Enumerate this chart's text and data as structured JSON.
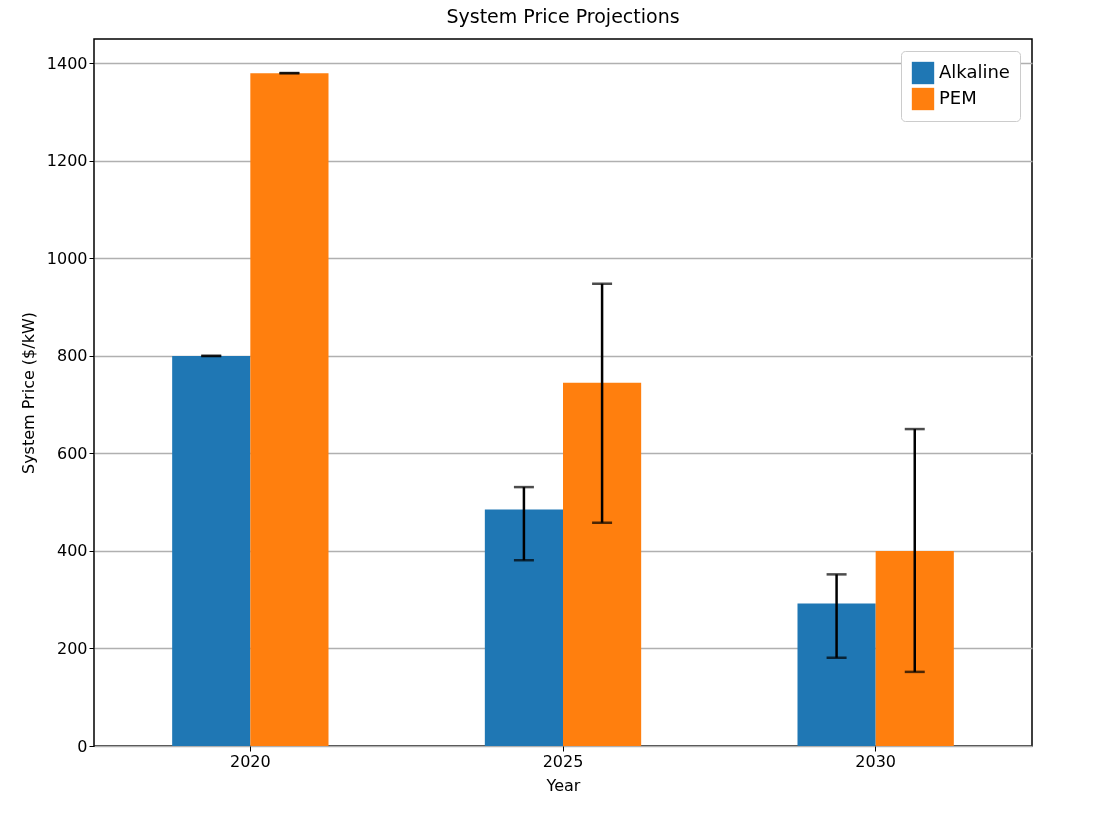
{
  "chart_data": {
    "type": "bar",
    "title": "System Price Projections",
    "xlabel": "Year",
    "ylabel": "System Price ($/kW)",
    "categories": [
      "2020",
      "2025",
      "2030"
    ],
    "series": [
      {
        "name": "Alkaline",
        "color": "#1f77b4",
        "values": [
          800,
          485,
          292
        ],
        "errors": [
          [
            800,
            800
          ],
          [
            381,
            531
          ],
          [
            181,
            352
          ]
        ]
      },
      {
        "name": "PEM",
        "color": "#ff7f0e",
        "values": [
          1380,
          745,
          400
        ],
        "errors": [
          [
            1380,
            1380
          ],
          [
            458,
            948
          ],
          [
            152,
            650
          ]
        ]
      }
    ],
    "ylim": [
      0,
      1450
    ],
    "yticks": [
      0,
      200,
      400,
      600,
      800,
      1000,
      1200,
      1400
    ],
    "grid": "y",
    "legend": "top right"
  }
}
